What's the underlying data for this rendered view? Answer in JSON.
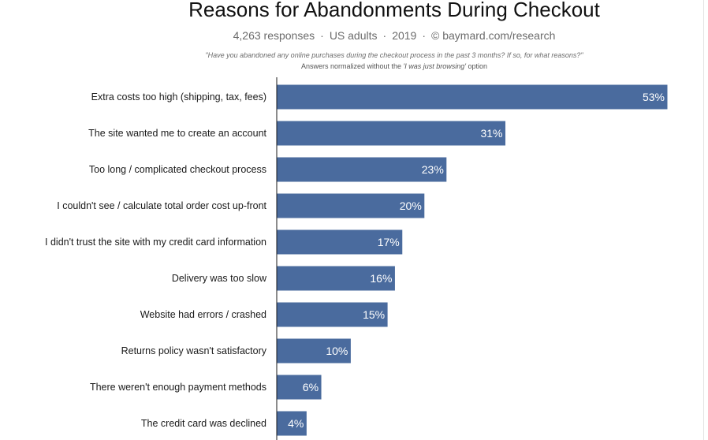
{
  "header": {
    "title": "Reasons for Abandonments During Checkout",
    "responses": "4,263 responses",
    "audience": "US adults",
    "year": "2019",
    "source": "© baymard.com/research",
    "separator": "·",
    "question": "\"Have you abandoned any online purchases during the checkout process in the past 3 months? If so, for what reasons?\"",
    "note_prefix": "Answers normalized without the",
    "note_emphasis": "'I was just browsing'",
    "note_suffix": "option"
  },
  "colors": {
    "bar": "#4a6b9e",
    "axis": "#1a1a1a",
    "value_text": "#ffffff"
  },
  "chart_data": {
    "type": "bar",
    "orientation": "horizontal",
    "title": "Reasons for Abandonments During Checkout",
    "xlabel": "",
    "ylabel": "",
    "xlim": [
      0,
      53
    ],
    "value_suffix": "%",
    "categories": [
      "Extra costs too high (shipping, tax, fees)",
      "The site wanted me to create an account",
      "Too long / complicated checkout process",
      "I couldn't see / calculate total order cost up-front",
      "I didn't trust the site with my credit card information",
      "Delivery was too slow",
      "Website had errors / crashed",
      "Returns policy wasn't satisfactory",
      "There weren't enough payment methods",
      "The credit card was declined"
    ],
    "values": [
      53,
      31,
      23,
      20,
      17,
      16,
      15,
      10,
      6,
      4
    ],
    "labels": [
      "53%",
      "31%",
      "23%",
      "20%",
      "17%",
      "16%",
      "15%",
      "10%",
      "6%",
      "4%"
    ]
  }
}
